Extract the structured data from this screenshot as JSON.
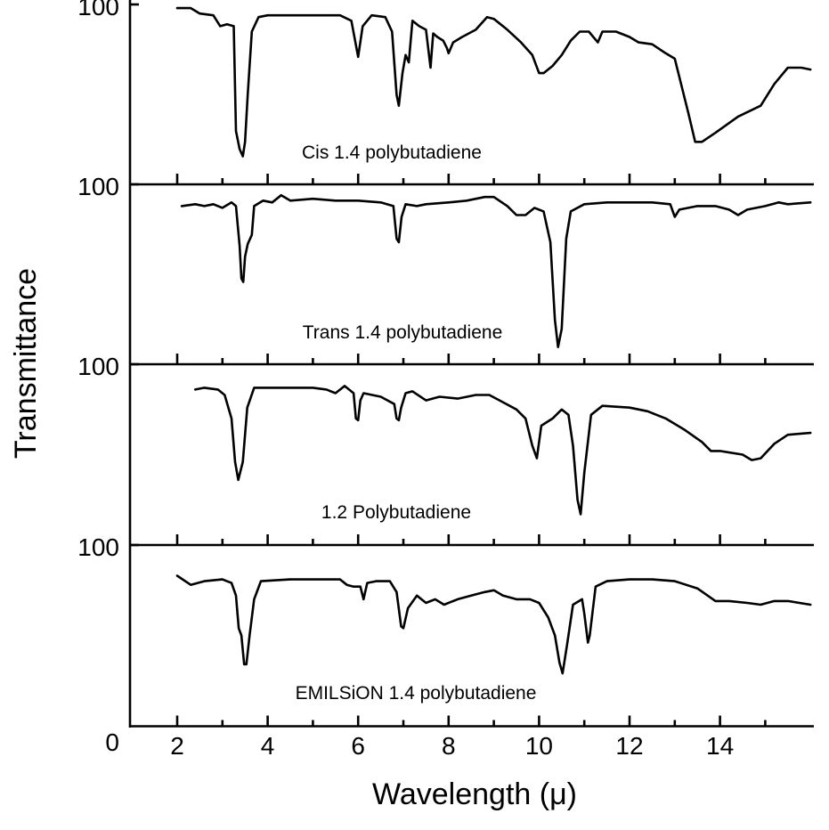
{
  "chart_data": {
    "type": "line",
    "xlabel": "Wavelength (μ)",
    "ylabel": "Transmittance",
    "x_tick_labels": [
      "2",
      "4",
      "6",
      "8",
      "10",
      "12",
      "14"
    ],
    "x_ticks": [
      2,
      4,
      6,
      8,
      10,
      12,
      14
    ],
    "x_minor_ticks": [
      3,
      5,
      7,
      9,
      11,
      13,
      15
    ],
    "xlim": [
      1,
      16
    ],
    "ylim": [
      0,
      100
    ],
    "y_top_label": "100",
    "y_bottom_label": "0",
    "panels": [
      {
        "label": "Cis 1.4 polybutadiene",
        "points": [
          [
            2.0,
            98
          ],
          [
            2.3,
            98
          ],
          [
            2.5,
            95
          ],
          [
            2.8,
            94
          ],
          [
            2.95,
            88
          ],
          [
            3.1,
            89
          ],
          [
            3.25,
            88
          ],
          [
            3.3,
            30
          ],
          [
            3.38,
            20
          ],
          [
            3.45,
            16
          ],
          [
            3.5,
            24
          ],
          [
            3.56,
            50
          ],
          [
            3.65,
            85
          ],
          [
            3.8,
            93
          ],
          [
            4.0,
            94
          ],
          [
            5.0,
            94
          ],
          [
            5.6,
            94
          ],
          [
            5.85,
            91
          ],
          [
            6.0,
            71
          ],
          [
            6.1,
            88
          ],
          [
            6.3,
            94
          ],
          [
            6.6,
            93
          ],
          [
            6.75,
            85
          ],
          [
            6.85,
            50
          ],
          [
            6.9,
            44
          ],
          [
            6.98,
            62
          ],
          [
            7.05,
            72
          ],
          [
            7.12,
            68
          ],
          [
            7.2,
            91
          ],
          [
            7.35,
            88
          ],
          [
            7.5,
            86
          ],
          [
            7.6,
            65
          ],
          [
            7.66,
            84
          ],
          [
            7.75,
            82
          ],
          [
            7.88,
            80
          ],
          [
            7.96,
            76
          ],
          [
            8.0,
            73
          ],
          [
            8.1,
            79
          ],
          [
            8.3,
            82
          ],
          [
            8.6,
            86
          ],
          [
            8.85,
            93
          ],
          [
            9.0,
            92
          ],
          [
            9.3,
            86
          ],
          [
            9.6,
            79
          ],
          [
            9.85,
            72
          ],
          [
            10.0,
            62
          ],
          [
            10.1,
            62
          ],
          [
            10.3,
            66
          ],
          [
            10.5,
            72
          ],
          [
            10.7,
            80
          ],
          [
            10.9,
            85
          ],
          [
            11.1,
            85
          ],
          [
            11.3,
            79
          ],
          [
            11.4,
            85
          ],
          [
            11.7,
            85
          ],
          [
            12.0,
            82
          ],
          [
            12.2,
            79
          ],
          [
            12.5,
            78
          ],
          [
            12.8,
            73
          ],
          [
            13.0,
            70
          ],
          [
            13.3,
            40
          ],
          [
            13.45,
            24
          ],
          [
            13.6,
            24
          ],
          [
            13.9,
            29
          ],
          [
            14.4,
            38
          ],
          [
            14.9,
            44
          ],
          [
            15.2,
            56
          ],
          [
            15.5,
            65
          ],
          [
            15.8,
            65
          ],
          [
            16.0,
            64
          ]
        ]
      },
      {
        "label": "Trans 1.4 polybutadiene",
        "points": [
          [
            2.1,
            88
          ],
          [
            2.4,
            89
          ],
          [
            2.6,
            88
          ],
          [
            2.8,
            89
          ],
          [
            3.0,
            87
          ],
          [
            3.2,
            90
          ],
          [
            3.3,
            88
          ],
          [
            3.38,
            66
          ],
          [
            3.42,
            48
          ],
          [
            3.46,
            46
          ],
          [
            3.5,
            60
          ],
          [
            3.56,
            67
          ],
          [
            3.65,
            72
          ],
          [
            3.7,
            88
          ],
          [
            3.9,
            91
          ],
          [
            4.1,
            90
          ],
          [
            4.3,
            94
          ],
          [
            4.5,
            91
          ],
          [
            5.0,
            92
          ],
          [
            5.5,
            91
          ],
          [
            6.0,
            91
          ],
          [
            6.5,
            90
          ],
          [
            6.78,
            88
          ],
          [
            6.85,
            70
          ],
          [
            6.9,
            68
          ],
          [
            6.96,
            82
          ],
          [
            7.05,
            89
          ],
          [
            7.3,
            88
          ],
          [
            7.5,
            89
          ],
          [
            8.0,
            90
          ],
          [
            8.4,
            91
          ],
          [
            8.8,
            93
          ],
          [
            9.0,
            93
          ],
          [
            9.3,
            88
          ],
          [
            9.5,
            83
          ],
          [
            9.7,
            83
          ],
          [
            9.9,
            87
          ],
          [
            10.1,
            85
          ],
          [
            10.25,
            68
          ],
          [
            10.35,
            25
          ],
          [
            10.42,
            10
          ],
          [
            10.5,
            20
          ],
          [
            10.6,
            70
          ],
          [
            10.7,
            85
          ],
          [
            11.0,
            89
          ],
          [
            11.5,
            90
          ],
          [
            12.5,
            90
          ],
          [
            12.9,
            89
          ],
          [
            13.0,
            82
          ],
          [
            13.1,
            86
          ],
          [
            13.5,
            88
          ],
          [
            13.9,
            88
          ],
          [
            14.2,
            86
          ],
          [
            14.4,
            83
          ],
          [
            14.6,
            86
          ],
          [
            15.0,
            88
          ],
          [
            15.3,
            90
          ],
          [
            15.5,
            89
          ],
          [
            16.0,
            90
          ]
        ]
      },
      {
        "label": "1.2 Polybutadiene",
        "points": [
          [
            2.4,
            86
          ],
          [
            2.6,
            87
          ],
          [
            2.9,
            86
          ],
          [
            3.05,
            83
          ],
          [
            3.2,
            70
          ],
          [
            3.28,
            46
          ],
          [
            3.35,
            36
          ],
          [
            3.45,
            46
          ],
          [
            3.55,
            76
          ],
          [
            3.7,
            87
          ],
          [
            4.5,
            87
          ],
          [
            5.0,
            87
          ],
          [
            5.3,
            86
          ],
          [
            5.5,
            84
          ],
          [
            5.7,
            88
          ],
          [
            5.9,
            84
          ],
          [
            5.95,
            70
          ],
          [
            6.0,
            69
          ],
          [
            6.05,
            80
          ],
          [
            6.12,
            84
          ],
          [
            6.5,
            82
          ],
          [
            6.8,
            78
          ],
          [
            6.85,
            70
          ],
          [
            6.9,
            69
          ],
          [
            6.95,
            76
          ],
          [
            7.05,
            84
          ],
          [
            7.2,
            85
          ],
          [
            7.5,
            80
          ],
          [
            7.8,
            82
          ],
          [
            8.2,
            81
          ],
          [
            8.6,
            83
          ],
          [
            8.9,
            83
          ],
          [
            9.2,
            79
          ],
          [
            9.5,
            75
          ],
          [
            9.7,
            70
          ],
          [
            9.85,
            55
          ],
          [
            9.95,
            48
          ],
          [
            10.05,
            66
          ],
          [
            10.3,
            70
          ],
          [
            10.5,
            75
          ],
          [
            10.65,
            72
          ],
          [
            10.75,
            55
          ],
          [
            10.85,
            25
          ],
          [
            10.92,
            17
          ],
          [
            11.0,
            40
          ],
          [
            11.15,
            72
          ],
          [
            11.4,
            77
          ],
          [
            12.0,
            76
          ],
          [
            12.4,
            74
          ],
          [
            12.8,
            70
          ],
          [
            13.2,
            64
          ],
          [
            13.6,
            57
          ],
          [
            13.8,
            52
          ],
          [
            14.0,
            52
          ],
          [
            14.5,
            50
          ],
          [
            14.7,
            47
          ],
          [
            14.9,
            48
          ],
          [
            15.2,
            56
          ],
          [
            15.5,
            61
          ],
          [
            16.0,
            62
          ]
        ]
      },
      {
        "label": "EMILSiON 1.4 polybutadiene",
        "points": [
          [
            2.0,
            83
          ],
          [
            2.3,
            78
          ],
          [
            2.6,
            80
          ],
          [
            3.0,
            81
          ],
          [
            3.2,
            79
          ],
          [
            3.3,
            72
          ],
          [
            3.36,
            54
          ],
          [
            3.42,
            50
          ],
          [
            3.48,
            34
          ],
          [
            3.53,
            34
          ],
          [
            3.6,
            50
          ],
          [
            3.7,
            70
          ],
          [
            3.85,
            80
          ],
          [
            4.5,
            81
          ],
          [
            5.0,
            81
          ],
          [
            5.6,
            81
          ],
          [
            5.75,
            78
          ],
          [
            5.9,
            77
          ],
          [
            6.05,
            77
          ],
          [
            6.12,
            70
          ],
          [
            6.2,
            79
          ],
          [
            6.4,
            80
          ],
          [
            6.7,
            80
          ],
          [
            6.85,
            74
          ],
          [
            6.95,
            55
          ],
          [
            7.0,
            54
          ],
          [
            7.1,
            65
          ],
          [
            7.3,
            72
          ],
          [
            7.5,
            68
          ],
          [
            7.7,
            70
          ],
          [
            7.9,
            67
          ],
          [
            8.2,
            70
          ],
          [
            8.5,
            72
          ],
          [
            8.8,
            74
          ],
          [
            9.0,
            75
          ],
          [
            9.2,
            72
          ],
          [
            9.5,
            70
          ],
          [
            9.8,
            70
          ],
          [
            10.0,
            68
          ],
          [
            10.2,
            60
          ],
          [
            10.35,
            50
          ],
          [
            10.45,
            35
          ],
          [
            10.52,
            29
          ],
          [
            10.62,
            45
          ],
          [
            10.75,
            67
          ],
          [
            10.95,
            70
          ],
          [
            11.0,
            62
          ],
          [
            11.08,
            46
          ],
          [
            11.12,
            50
          ],
          [
            11.25,
            77
          ],
          [
            11.5,
            80
          ],
          [
            12.0,
            81
          ],
          [
            12.5,
            81
          ],
          [
            13.0,
            80
          ],
          [
            13.5,
            76
          ],
          [
            13.9,
            69
          ],
          [
            14.2,
            69
          ],
          [
            14.6,
            68
          ],
          [
            14.9,
            67
          ],
          [
            15.2,
            69
          ],
          [
            15.5,
            69
          ],
          [
            16.0,
            67
          ]
        ]
      }
    ]
  }
}
